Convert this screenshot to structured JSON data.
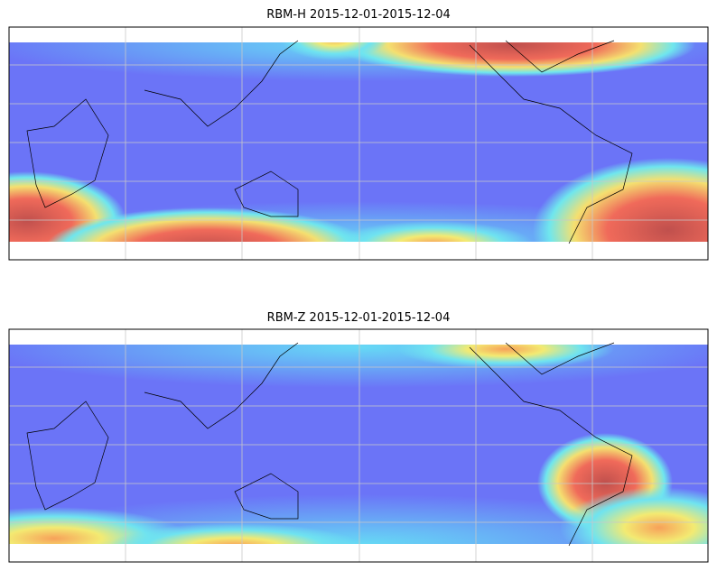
{
  "panels": [
    {
      "title": "RBM-H 2015-12-01-2015-12-04"
    },
    {
      "title": "RBM-Z 2015-12-01-2015-12-04"
    }
  ]
}
